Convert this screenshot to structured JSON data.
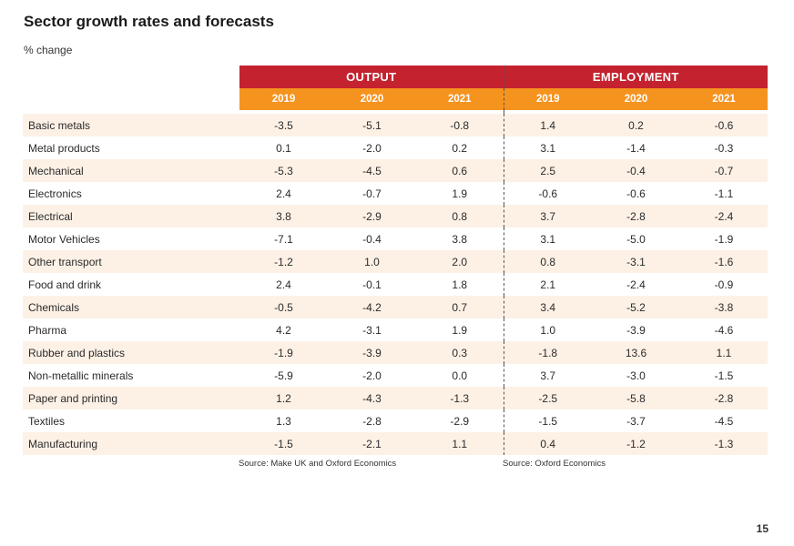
{
  "title": "Sector growth rates and forecasts",
  "subtitle": "% change",
  "groups": {
    "output": "OUTPUT",
    "employment": "EMPLOYMENT"
  },
  "years": [
    "2019",
    "2020",
    "2021"
  ],
  "rows": [
    {
      "sector": "Basic metals",
      "output": [
        "-3.5",
        "-5.1",
        "-0.8"
      ],
      "employment": [
        "1.4",
        "0.2",
        "-0.6"
      ]
    },
    {
      "sector": "Metal products",
      "output": [
        "0.1",
        "-2.0",
        "0.2"
      ],
      "employment": [
        "3.1",
        "-1.4",
        "-0.3"
      ]
    },
    {
      "sector": "Mechanical",
      "output": [
        "-5.3",
        "-4.5",
        "0.6"
      ],
      "employment": [
        "2.5",
        "-0.4",
        "-0.7"
      ]
    },
    {
      "sector": "Electronics",
      "output": [
        "2.4",
        "-0.7",
        "1.9"
      ],
      "employment": [
        "-0.6",
        "-0.6",
        "-1.1"
      ]
    },
    {
      "sector": "Electrical",
      "output": [
        "3.8",
        "-2.9",
        "0.8"
      ],
      "employment": [
        "3.7",
        "-2.8",
        "-2.4"
      ]
    },
    {
      "sector": "Motor Vehicles",
      "output": [
        "-7.1",
        "-0.4",
        "3.8"
      ],
      "employment": [
        "3.1",
        "-5.0",
        "-1.9"
      ]
    },
    {
      "sector": "Other transport",
      "output": [
        "-1.2",
        "1.0",
        "2.0"
      ],
      "employment": [
        "0.8",
        "-3.1",
        "-1.6"
      ]
    },
    {
      "sector": "Food and drink",
      "output": [
        "2.4",
        "-0.1",
        "1.8"
      ],
      "employment": [
        "2.1",
        "-2.4",
        "-0.9"
      ]
    },
    {
      "sector": "Chemicals",
      "output": [
        "-0.5",
        "-4.2",
        "0.7"
      ],
      "employment": [
        "3.4",
        "-5.2",
        "-3.8"
      ]
    },
    {
      "sector": "Pharma",
      "output": [
        "4.2",
        "-3.1",
        "1.9"
      ],
      "employment": [
        "1.0",
        "-3.9",
        "-4.6"
      ]
    },
    {
      "sector": "Rubber and plastics",
      "output": [
        "-1.9",
        "-3.9",
        "0.3"
      ],
      "employment": [
        "-1.8",
        "13.6",
        "1.1"
      ]
    },
    {
      "sector": "Non-metallic minerals",
      "output": [
        "-5.9",
        "-2.0",
        "0.0"
      ],
      "employment": [
        "3.7",
        "-3.0",
        "-1.5"
      ]
    },
    {
      "sector": "Paper and printing",
      "output": [
        "1.2",
        "-4.3",
        "-1.3"
      ],
      "employment": [
        "-2.5",
        "-5.8",
        "-2.8"
      ]
    },
    {
      "sector": "Textiles",
      "output": [
        "1.3",
        "-2.8",
        "-2.9"
      ],
      "employment": [
        "-1.5",
        "-3.7",
        "-4.5"
      ]
    },
    {
      "sector": "Manufacturing",
      "output": [
        "-1.5",
        "-2.1",
        "1.1"
      ],
      "employment": [
        "0.4",
        "-1.2",
        "-1.3"
      ]
    }
  ],
  "sources": {
    "output": "Source: Make UK and Oxford Economics",
    "employment": "Source: Oxford Economics"
  },
  "page_number": "15"
}
